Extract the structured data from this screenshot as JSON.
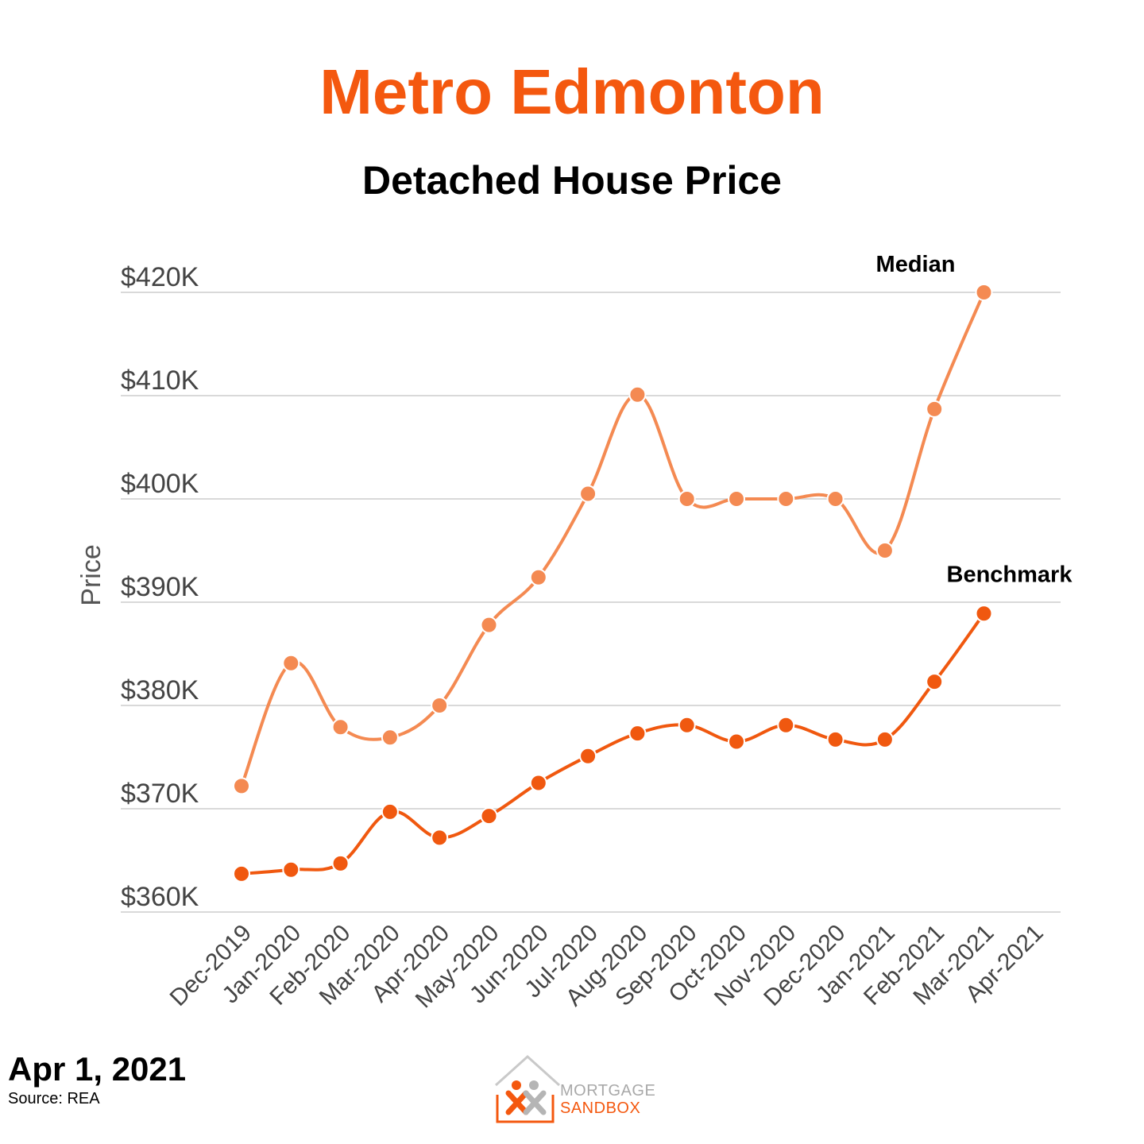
{
  "header": {
    "title": "Metro Edmonton",
    "subtitle": "Detached House Price"
  },
  "footer": {
    "date": "Apr 1, 2021",
    "source": "Source: REA",
    "logo_line1": "MORTGAGE",
    "logo_line2": "SANDBOX"
  },
  "colors": {
    "title": "#f4580f",
    "median": "#f48a52",
    "benchmark": "#f0580f",
    "grid": "#d9d9d9",
    "axis_text": "#444444"
  },
  "chart_data": {
    "type": "line",
    "title": "Detached House Price",
    "xlabel": "",
    "ylabel": "Price",
    "ylim": [
      360000,
      420000
    ],
    "yticks": [
      360000,
      370000,
      380000,
      390000,
      400000,
      410000,
      420000
    ],
    "ytick_labels": [
      "$360K",
      "$370K",
      "$380K",
      "$390K",
      "$400K",
      "$410K",
      "$420K"
    ],
    "grid": true,
    "categories": [
      "Dec-2019",
      "Jan-2020",
      "Feb-2020",
      "Mar-2020",
      "Apr-2020",
      "May-2020",
      "Jun-2020",
      "Jul-2020",
      "Aug-2020",
      "Sep-2020",
      "Oct-2020",
      "Nov-2020",
      "Dec-2020",
      "Jan-2021",
      "Feb-2021",
      "Mar-2021",
      "Apr-2021"
    ],
    "series": [
      {
        "name": "Median",
        "label_text": "Median",
        "values": [
          372200,
          384100,
          377900,
          376900,
          380000,
          387800,
          392400,
          400500,
          410100,
          400000,
          400000,
          400000,
          400000,
          395000,
          408700,
          420000,
          null
        ]
      },
      {
        "name": "Benchmark",
        "label_text": "Benchmark",
        "values": [
          363700,
          364100,
          364700,
          369700,
          367200,
          369300,
          372500,
          375100,
          377300,
          378100,
          376500,
          378100,
          376700,
          376700,
          382300,
          388900,
          null
        ]
      }
    ]
  }
}
